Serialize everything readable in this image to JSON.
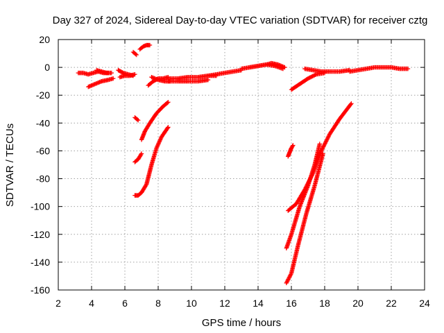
{
  "chart_data": {
    "type": "scatter",
    "title": "Day 327 of 2024, Sidereal Day-to-day VTEC variation (SDTVAR) for receiver cztg",
    "xlabel": "GPS time / hours",
    "ylabel": "SDTVAR / TECUs",
    "xlim": [
      2,
      24
    ],
    "ylim": [
      -160,
      20
    ],
    "xticks": [
      "2",
      "4",
      "6",
      "8",
      "10",
      "12",
      "14",
      "16",
      "18",
      "20",
      "22",
      "24"
    ],
    "yticks": [
      "20",
      "0",
      "-20",
      "-40",
      "-60",
      "-80",
      "-100",
      "-120",
      "-140",
      "-160"
    ],
    "grid": true,
    "marker": "+",
    "color": "#ff0000",
    "tracks": [
      {
        "x": [
          3.2,
          3.5,
          3.8,
          4.1,
          4.4,
          4.7,
          5.0
        ],
        "y": [
          -4,
          -4,
          -5,
          -4,
          -3,
          -4,
          -4
        ]
      },
      {
        "x": [
          3.8,
          4.2,
          4.6,
          5.0,
          5.3
        ],
        "y": [
          -14,
          -12,
          -10,
          -9,
          -8
        ]
      },
      {
        "x": [
          4.3,
          4.6,
          4.9,
          5.2
        ],
        "y": [
          -2,
          -3,
          -4,
          -4
        ]
      },
      {
        "x": [
          5.6,
          5.9,
          6.2,
          6.5
        ],
        "y": [
          -2,
          -4,
          -5,
          -6
        ]
      },
      {
        "x": [
          5.7,
          6.0,
          6.3,
          6.6
        ],
        "y": [
          -7,
          -6,
          -6,
          -5
        ]
      },
      {
        "x": [
          6.5,
          6.6,
          6.7
        ],
        "y": [
          11,
          10,
          9
        ]
      },
      {
        "x": [
          6.9,
          7.1,
          7.3,
          7.5
        ],
        "y": [
          13,
          15,
          16,
          16
        ]
      },
      {
        "x": [
          7.4,
          7.7,
          8.0,
          8.3,
          8.6
        ],
        "y": [
          -13,
          -10,
          -8,
          -8,
          -7
        ]
      },
      {
        "x": [
          7.6,
          8.0,
          8.4,
          8.7
        ],
        "y": [
          -7,
          -9,
          -10,
          -10
        ]
      },
      {
        "x": [
          8.6,
          9.2,
          9.8,
          10.4,
          11.0,
          11.5
        ],
        "y": [
          -8,
          -8,
          -7,
          -7,
          -6,
          -6
        ]
      },
      {
        "x": [
          8.6,
          9.2,
          9.8,
          10.4,
          11.0
        ],
        "y": [
          -10,
          -10,
          -10,
          -10,
          -9
        ]
      },
      {
        "x": [
          11.0,
          11.5,
          12.0,
          12.5,
          13.0
        ],
        "y": [
          -6,
          -5,
          -4,
          -3,
          -2
        ]
      },
      {
        "x": [
          13.0,
          13.5,
          14.0,
          14.5,
          14.8,
          15.2,
          15.6
        ],
        "y": [
          -1,
          0,
          1,
          2,
          3,
          2,
          0
        ]
      },
      {
        "x": [
          13.5,
          14.0,
          14.5,
          15.0,
          15.5
        ],
        "y": [
          0,
          1,
          2,
          1,
          -1
        ]
      },
      {
        "x": [
          16.0,
          16.5,
          17.0,
          17.5,
          18.0
        ],
        "y": [
          -16,
          -12,
          -8,
          -5,
          -4
        ]
      },
      {
        "x": [
          16.8,
          17.3,
          17.8,
          18.3,
          18.9,
          19.5
        ],
        "y": [
          -1,
          -2,
          -3,
          -3,
          -3,
          -2
        ]
      },
      {
        "x": [
          19.5,
          20.0,
          20.5,
          21.0,
          21.5,
          22.0,
          22.5,
          23.0
        ],
        "y": [
          -3,
          -2,
          -1,
          0,
          0,
          0,
          -1,
          -1
        ]
      },
      {
        "x": [
          6.6,
          6.7,
          6.8
        ],
        "y": [
          -36,
          -37,
          -38
        ]
      },
      {
        "x": [
          7.0,
          7.2,
          7.5,
          7.9,
          8.3,
          8.6
        ],
        "y": [
          -52,
          -46,
          -40,
          -33,
          -28,
          -25
        ]
      },
      {
        "x": [
          6.6,
          6.8,
          7.0
        ],
        "y": [
          -68,
          -66,
          -62
        ]
      },
      {
        "x": [
          6.6,
          6.8,
          7.0,
          7.3,
          7.6,
          7.9,
          8.2,
          8.6
        ],
        "y": [
          -92,
          -92,
          -90,
          -84,
          -70,
          -58,
          -50,
          -43
        ]
      },
      {
        "x": [
          15.8,
          15.9,
          16.0,
          16.1
        ],
        "y": [
          -64,
          -61,
          -58,
          -56
        ]
      },
      {
        "x": [
          15.8,
          16.3,
          16.8,
          17.3,
          17.8,
          18.3,
          18.9,
          19.6
        ],
        "y": [
          -103,
          -98,
          -88,
          -76,
          -60,
          -48,
          -37,
          -26
        ]
      },
      {
        "x": [
          15.7,
          16.0,
          16.5,
          17.0,
          17.4,
          17.7
        ],
        "y": [
          -130,
          -120,
          -100,
          -85,
          -70,
          -55
        ]
      },
      {
        "x": [
          15.7,
          16.0,
          16.4,
          16.9,
          17.4,
          17.9
        ],
        "y": [
          -155,
          -148,
          -128,
          -105,
          -85,
          -62
        ]
      }
    ]
  }
}
